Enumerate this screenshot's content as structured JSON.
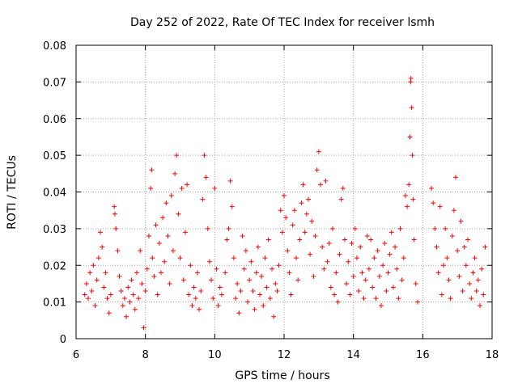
{
  "chart_data": {
    "type": "scatter",
    "title": "Day 252 of 2022, Rate Of TEC Index for receiver lsmh",
    "xlabel": "GPS time / hours",
    "ylabel": "ROTI / TECUs",
    "xlim": [
      6,
      18
    ],
    "ylim": [
      0,
      0.08
    ],
    "xticks": [
      6,
      8,
      10,
      12,
      14,
      16,
      18
    ],
    "xtick_labels": [
      "6",
      "8",
      "10",
      "12",
      "14",
      "16",
      "18"
    ],
    "yticks": [
      0,
      0.01,
      0.02,
      0.03,
      0.04,
      0.05,
      0.06,
      0.07,
      0.08
    ],
    "ytick_labels": [
      "0",
      "0.01",
      "0.02",
      "0.03",
      "0.04",
      "0.05",
      "0.06",
      "0.07",
      "0.08"
    ],
    "grid": true,
    "marker": "+",
    "color": "#ff0000",
    "series": [
      {
        "name": "ROTI",
        "points": [
          [
            6.25,
            0.012
          ],
          [
            6.3,
            0.015
          ],
          [
            6.35,
            0.011
          ],
          [
            6.4,
            0.018
          ],
          [
            6.45,
            0.013
          ],
          [
            6.5,
            0.02
          ],
          [
            6.55,
            0.009
          ],
          [
            6.6,
            0.016
          ],
          [
            6.65,
            0.022
          ],
          [
            6.7,
            0.029
          ],
          [
            6.75,
            0.025
          ],
          [
            6.8,
            0.014
          ],
          [
            6.85,
            0.018
          ],
          [
            6.9,
            0.011
          ],
          [
            6.95,
            0.007
          ],
          [
            7.0,
            0.012
          ],
          [
            7.1,
            0.036
          ],
          [
            7.12,
            0.034
          ],
          [
            7.15,
            0.03
          ],
          [
            7.2,
            0.024
          ],
          [
            7.25,
            0.017
          ],
          [
            7.3,
            0.013
          ],
          [
            7.35,
            0.009
          ],
          [
            7.4,
            0.011
          ],
          [
            7.45,
            0.006
          ],
          [
            7.5,
            0.014
          ],
          [
            7.55,
            0.01
          ],
          [
            7.6,
            0.016
          ],
          [
            7.65,
            0.012
          ],
          [
            7.7,
            0.008
          ],
          [
            7.75,
            0.018
          ],
          [
            7.8,
            0.011
          ],
          [
            7.85,
            0.024
          ],
          [
            7.9,
            0.015
          ],
          [
            7.95,
            0.003
          ],
          [
            8.0,
            0.013
          ],
          [
            8.05,
            0.019
          ],
          [
            8.1,
            0.028
          ],
          [
            8.15,
            0.041
          ],
          [
            8.18,
            0.046
          ],
          [
            8.2,
            0.022
          ],
          [
            8.25,
            0.017
          ],
          [
            8.3,
            0.031
          ],
          [
            8.35,
            0.012
          ],
          [
            8.4,
            0.026
          ],
          [
            8.45,
            0.018
          ],
          [
            8.5,
            0.033
          ],
          [
            8.55,
            0.021
          ],
          [
            8.6,
            0.037
          ],
          [
            8.65,
            0.028
          ],
          [
            8.7,
            0.015
          ],
          [
            8.75,
            0.039
          ],
          [
            8.8,
            0.024
          ],
          [
            8.85,
            0.045
          ],
          [
            8.9,
            0.05
          ],
          [
            8.95,
            0.034
          ],
          [
            9.0,
            0.022
          ],
          [
            9.05,
            0.041
          ],
          [
            9.1,
            0.016
          ],
          [
            9.15,
            0.029
          ],
          [
            9.2,
            0.042
          ],
          [
            9.25,
            0.012
          ],
          [
            9.3,
            0.02
          ],
          [
            9.35,
            0.009
          ],
          [
            9.4,
            0.014
          ],
          [
            9.45,
            0.011
          ],
          [
            9.5,
            0.018
          ],
          [
            9.55,
            0.008
          ],
          [
            9.6,
            0.013
          ],
          [
            9.65,
            0.038
          ],
          [
            9.7,
            0.05
          ],
          [
            9.75,
            0.044
          ],
          [
            9.8,
            0.03
          ],
          [
            9.85,
            0.021
          ],
          [
            9.9,
            0.016
          ],
          [
            9.95,
            0.011
          ],
          [
            10.0,
            0.041
          ],
          [
            10.05,
            0.019
          ],
          [
            10.1,
            0.009
          ],
          [
            10.15,
            0.014
          ],
          [
            10.2,
            0.012
          ],
          [
            10.3,
            0.018
          ],
          [
            10.35,
            0.027
          ],
          [
            10.4,
            0.03
          ],
          [
            10.45,
            0.043
          ],
          [
            10.5,
            0.036
          ],
          [
            10.55,
            0.022
          ],
          [
            10.6,
            0.011
          ],
          [
            10.65,
            0.015
          ],
          [
            10.7,
            0.007
          ],
          [
            10.75,
            0.013
          ],
          [
            10.8,
            0.028
          ],
          [
            10.85,
            0.019
          ],
          [
            10.9,
            0.024
          ],
          [
            10.95,
            0.01
          ],
          [
            11.0,
            0.016
          ],
          [
            11.05,
            0.021
          ],
          [
            11.1,
            0.013
          ],
          [
            11.15,
            0.008
          ],
          [
            11.2,
            0.018
          ],
          [
            11.25,
            0.025
          ],
          [
            11.3,
            0.012
          ],
          [
            11.35,
            0.017
          ],
          [
            11.4,
            0.009
          ],
          [
            11.45,
            0.022
          ],
          [
            11.5,
            0.014
          ],
          [
            11.55,
            0.027
          ],
          [
            11.6,
            0.011
          ],
          [
            11.65,
            0.019
          ],
          [
            11.7,
            0.006
          ],
          [
            11.75,
            0.015
          ],
          [
            11.8,
            0.013
          ],
          [
            11.85,
            0.02
          ],
          [
            11.9,
            0.035
          ],
          [
            11.95,
            0.029
          ],
          [
            12.0,
            0.039
          ],
          [
            12.05,
            0.033
          ],
          [
            12.1,
            0.024
          ],
          [
            12.15,
            0.018
          ],
          [
            12.2,
            0.012
          ],
          [
            12.25,
            0.031
          ],
          [
            12.3,
            0.035
          ],
          [
            12.35,
            0.022
          ],
          [
            12.4,
            0.016
          ],
          [
            12.45,
            0.027
          ],
          [
            12.5,
            0.037
          ],
          [
            12.55,
            0.042
          ],
          [
            12.6,
            0.029
          ],
          [
            12.65,
            0.034
          ],
          [
            12.7,
            0.038
          ],
          [
            12.75,
            0.023
          ],
          [
            12.8,
            0.032
          ],
          [
            12.85,
            0.017
          ],
          [
            12.9,
            0.028
          ],
          [
            12.95,
            0.046
          ],
          [
            13.0,
            0.051
          ],
          [
            13.05,
            0.042
          ],
          [
            13.1,
            0.025
          ],
          [
            13.15,
            0.019
          ],
          [
            13.2,
            0.043
          ],
          [
            13.25,
            0.021
          ],
          [
            13.3,
            0.026
          ],
          [
            13.35,
            0.014
          ],
          [
            13.4,
            0.03
          ],
          [
            13.45,
            0.012
          ],
          [
            13.5,
            0.018
          ],
          [
            13.55,
            0.01
          ],
          [
            13.6,
            0.023
          ],
          [
            13.65,
            0.038
          ],
          [
            13.7,
            0.041
          ],
          [
            13.75,
            0.027
          ],
          [
            13.8,
            0.015
          ],
          [
            13.85,
            0.021
          ],
          [
            13.9,
            0.012
          ],
          [
            13.95,
            0.026
          ],
          [
            14.0,
            0.017
          ],
          [
            14.05,
            0.03
          ],
          [
            14.1,
            0.022
          ],
          [
            14.15,
            0.013
          ],
          [
            14.2,
            0.025
          ],
          [
            14.25,
            0.018
          ],
          [
            14.3,
            0.011
          ],
          [
            14.35,
            0.016
          ],
          [
            14.4,
            0.028
          ],
          [
            14.45,
            0.019
          ],
          [
            14.5,
            0.027
          ],
          [
            14.55,
            0.014
          ],
          [
            14.6,
            0.022
          ],
          [
            14.65,
            0.011
          ],
          [
            14.7,
            0.024
          ],
          [
            14.75,
            0.017
          ],
          [
            14.8,
            0.009
          ],
          [
            14.85,
            0.02
          ],
          [
            14.9,
            0.026
          ],
          [
            14.95,
            0.013
          ],
          [
            15.0,
            0.018
          ],
          [
            15.05,
            0.023
          ],
          [
            15.1,
            0.029
          ],
          [
            15.15,
            0.014
          ],
          [
            15.2,
            0.025
          ],
          [
            15.25,
            0.019
          ],
          [
            15.3,
            0.011
          ],
          [
            15.35,
            0.03
          ],
          [
            15.4,
            0.016
          ],
          [
            15.45,
            0.022
          ],
          [
            15.5,
            0.039
          ],
          [
            15.55,
            0.036
          ],
          [
            15.6,
            0.042
          ],
          [
            15.63,
            0.055
          ],
          [
            15.65,
            0.07
          ],
          [
            15.66,
            0.071
          ],
          [
            15.68,
            0.063
          ],
          [
            15.7,
            0.05
          ],
          [
            15.72,
            0.038
          ],
          [
            15.75,
            0.027
          ],
          [
            15.8,
            0.015
          ],
          [
            15.85,
            0.01
          ],
          [
            16.25,
            0.041
          ],
          [
            16.3,
            0.037
          ],
          [
            16.35,
            0.03
          ],
          [
            16.4,
            0.025
          ],
          [
            16.45,
            0.018
          ],
          [
            16.5,
            0.036
          ],
          [
            16.55,
            0.012
          ],
          [
            16.6,
            0.02
          ],
          [
            16.65,
            0.03
          ],
          [
            16.7,
            0.022
          ],
          [
            16.75,
            0.016
          ],
          [
            16.8,
            0.011
          ],
          [
            16.85,
            0.028
          ],
          [
            16.9,
            0.035
          ],
          [
            16.95,
            0.044
          ],
          [
            17.0,
            0.024
          ],
          [
            17.05,
            0.017
          ],
          [
            17.1,
            0.032
          ],
          [
            17.15,
            0.013
          ],
          [
            17.2,
            0.025
          ],
          [
            17.25,
            0.02
          ],
          [
            17.3,
            0.027
          ],
          [
            17.35,
            0.015
          ],
          [
            17.4,
            0.011
          ],
          [
            17.45,
            0.018
          ],
          [
            17.5,
            0.022
          ],
          [
            17.55,
            0.013
          ],
          [
            17.6,
            0.016
          ],
          [
            17.65,
            0.009
          ],
          [
            17.7,
            0.019
          ],
          [
            17.75,
            0.012
          ],
          [
            17.8,
            0.025
          ]
        ]
      }
    ]
  }
}
